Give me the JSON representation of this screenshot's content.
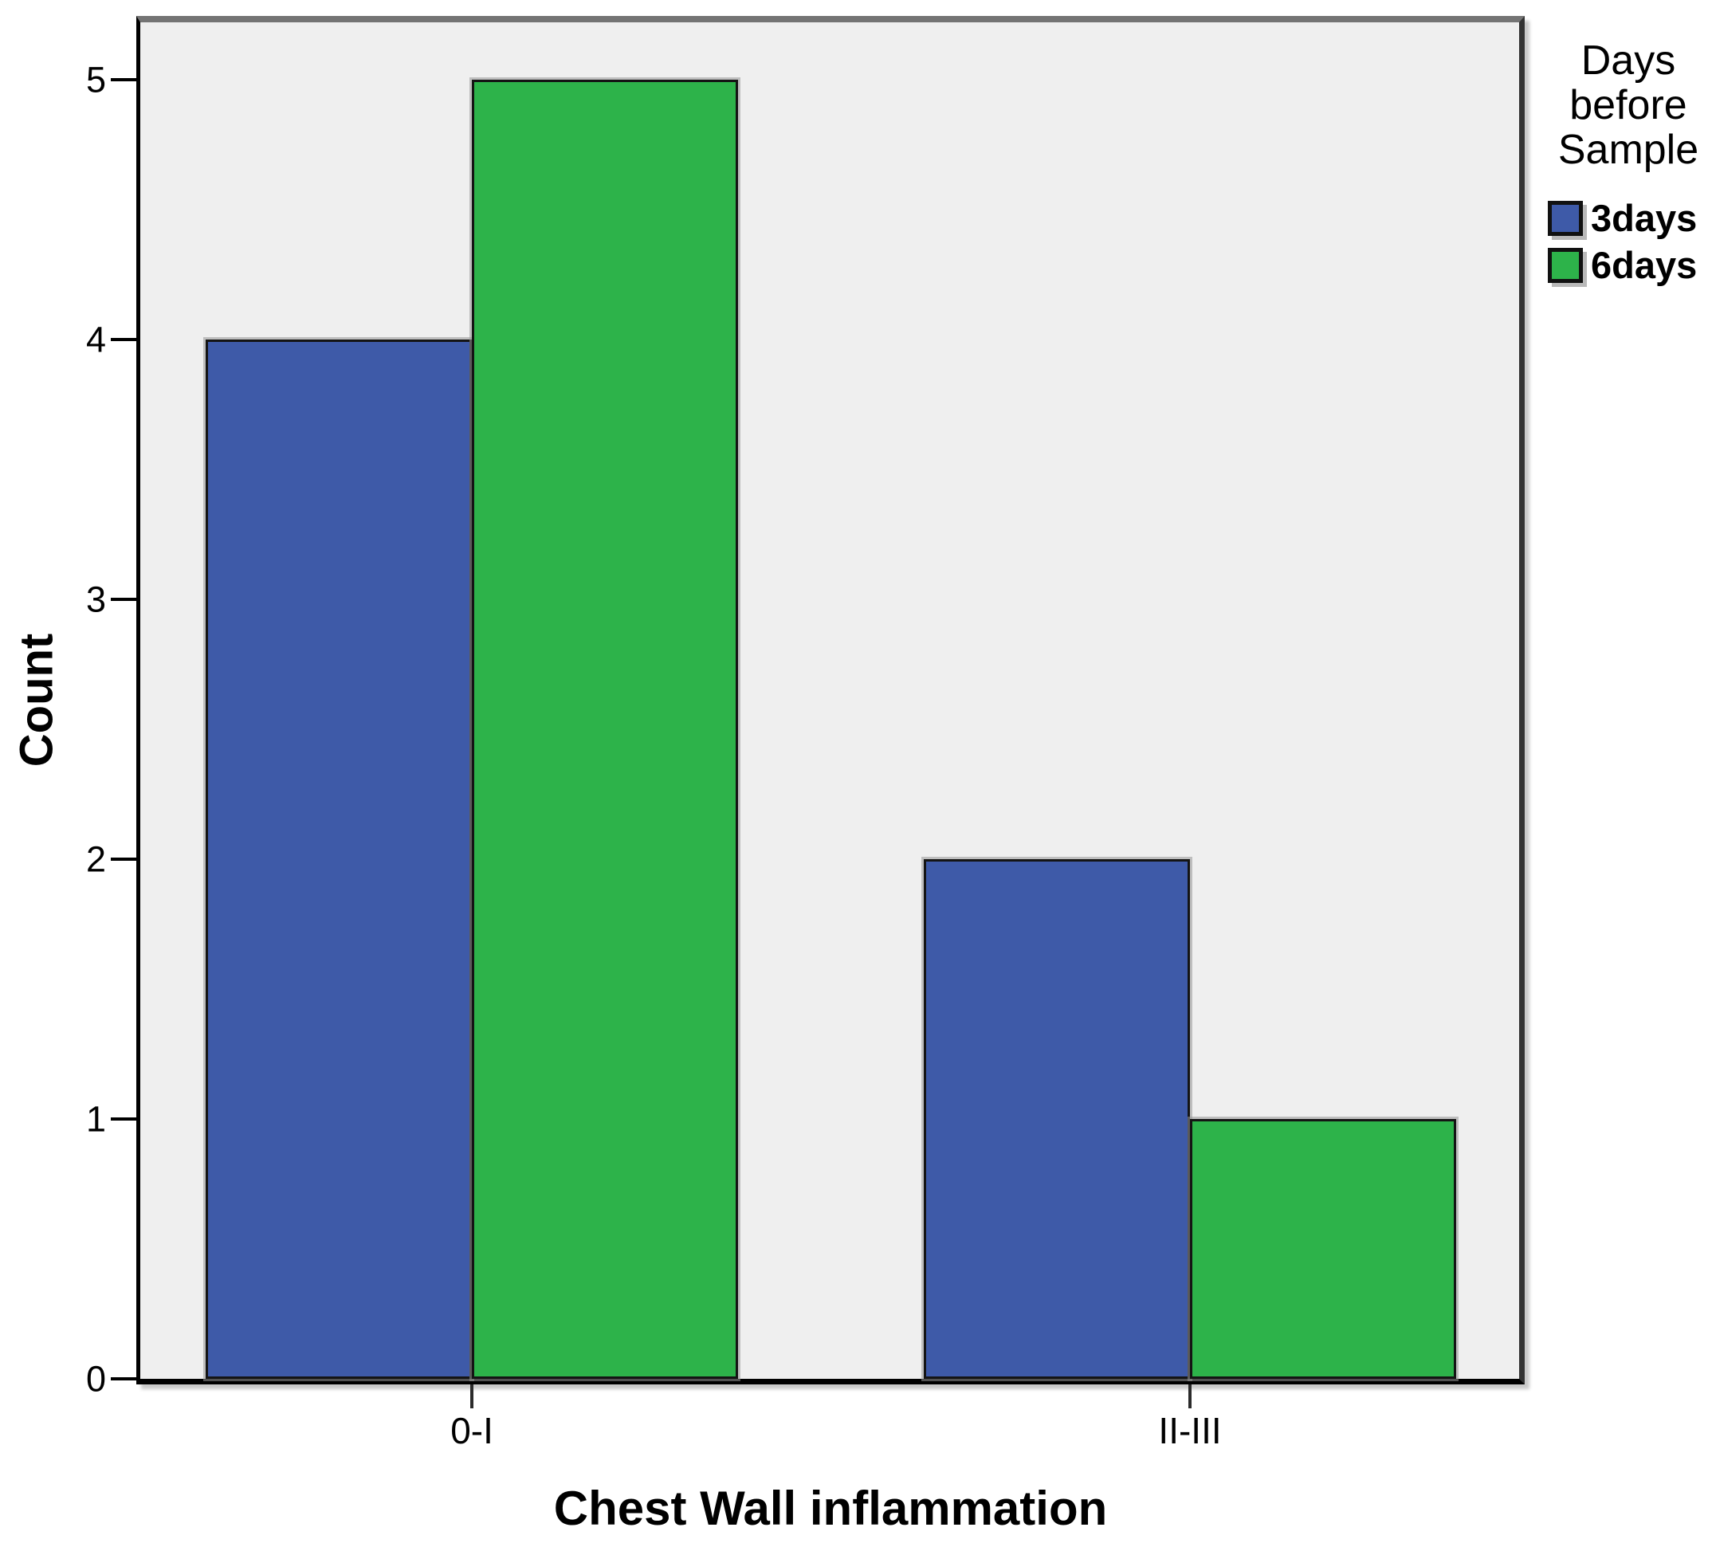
{
  "chart_data": {
    "type": "bar",
    "title": "",
    "xlabel": "Chest Wall inflammation",
    "ylabel": "Count",
    "categories": [
      "0-I",
      "II-III"
    ],
    "series": [
      {
        "name": "3days",
        "color": "#3E5AA8",
        "values": [
          4,
          2
        ]
      },
      {
        "name": "6days",
        "color": "#2DB34A",
        "values": [
          5,
          1
        ]
      }
    ],
    "ylim": [
      0,
      5.22
    ],
    "yticks": [
      0,
      1,
      2,
      3,
      4,
      5
    ],
    "grid": false,
    "legend": {
      "title": "Days\nbefore\nSample",
      "position": "right"
    },
    "colors": {
      "plot_background": "#EFEFEF",
      "bar_border": "#141414",
      "frame": "#000000"
    }
  }
}
